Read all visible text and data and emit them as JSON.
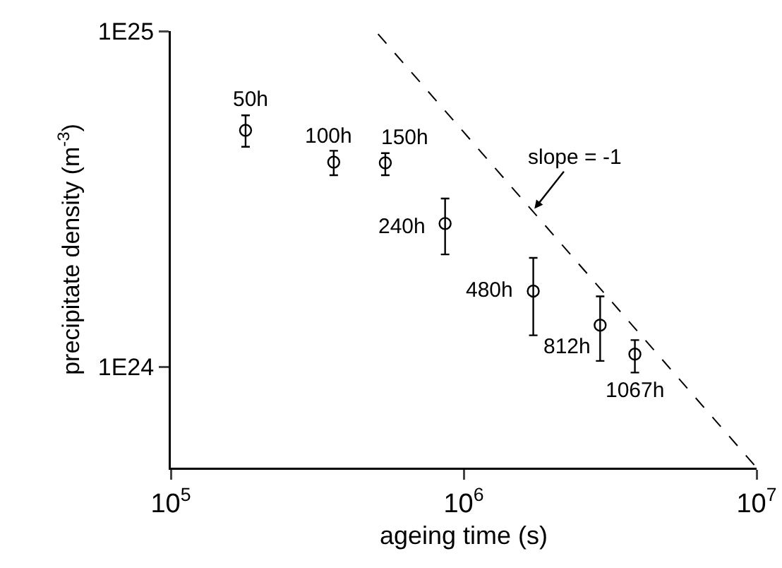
{
  "chart_data": {
    "type": "scatter",
    "xlabel": "ageing time (s)",
    "ylabel": "precipitate density (m$^{-3}$)",
    "log": "xy",
    "grid": false,
    "marker": "circle",
    "xlim": [
      100000,
      10000000
    ],
    "xticks": [
      {
        "value": 100000,
        "label": "10$^{5}$"
      },
      {
        "value": 1000000,
        "label": "10$^{6}$"
      },
      {
        "value": 10000000,
        "label": "10$^{7}$"
      }
    ],
    "ylim": [
      5e+23,
      1e+25
    ],
    "yticks": [
      {
        "value": 1e+24,
        "label": "1E24"
      },
      {
        "value": 1e+25,
        "label": "1E25"
      }
    ],
    "series": [
      {
        "color": "#000000",
        "x": [
          180000,
          360000,
          540000,
          864000,
          1728000,
          2923200,
          3841200
        ],
        "values": [
          5.06e+24,
          4.07e+24,
          4.05e+24,
          2.67e+24,
          1.68e+24,
          1.33e+24,
          1.09e+24
        ],
        "errors": [
          [
            4.52e+24,
            5.61e+24
          ],
          [
            3.72e+24,
            4.4e+24
          ],
          [
            3.72e+24,
            4.33e+24
          ],
          [
            2.16e+24,
            3.17e+24
          ],
          [
            1.24e+24,
            2.11e+24
          ],
          [
            1.04e+24,
            1.62e+24
          ],
          [
            9.6e+23,
            1.2e+24
          ]
        ]
      },
      {
        "type": "line",
        "color": "#000000",
        "line_style": "dashed",
        "marker": "none",
        "x": [
          510000,
          10000000
        ],
        "values": [
          9.8e+24,
          5e+23
        ]
      }
    ],
    "annotations": [
      {
        "text": "50h",
        "x": 180000,
        "y": 5.06e+24
      },
      {
        "text": "100h",
        "x": 360000,
        "y": 4.07e+24
      },
      {
        "text": "150h",
        "x": 540000,
        "y": 4.05e+24
      },
      {
        "text": "240h",
        "x": 864000,
        "y": 2.67e+24
      },
      {
        "text": "480h",
        "x": 1728000,
        "y": 1.68e+24
      },
      {
        "text": "812h",
        "x": 2923200,
        "y": 1.33e+24
      },
      {
        "text": "1067h",
        "x": 3841200,
        "y": 1.09e+24
      },
      {
        "text": "slope = -1",
        "x": 1720000,
        "y": 2.91e+24
      }
    ]
  }
}
